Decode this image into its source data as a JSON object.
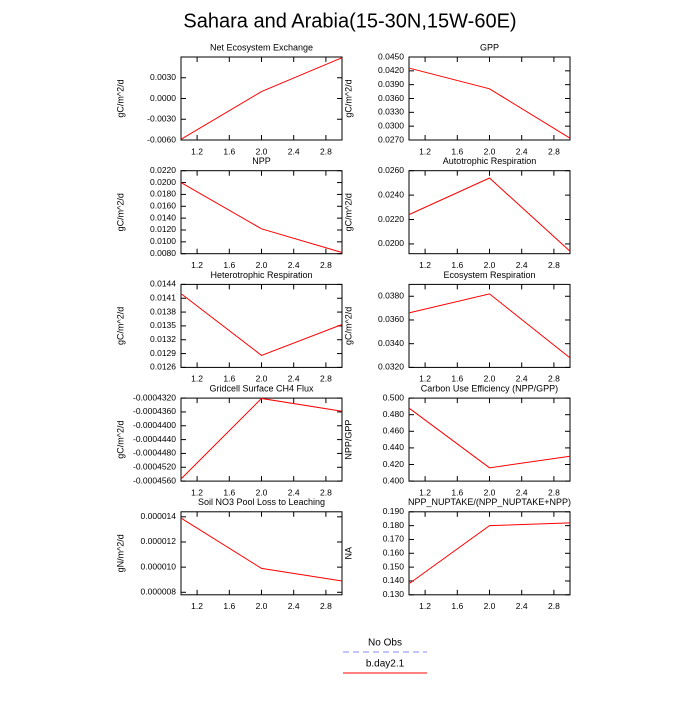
{
  "title": "Sahara and Arabia(15-30N,15W-60E)",
  "legend": [
    {
      "name": "No Obs",
      "color": "#8888ff",
      "dash": true
    },
    {
      "name": "b.day2.1",
      "color": "#ff0000",
      "dash": false
    }
  ],
  "chart_data": [
    {
      "type": "line",
      "title": "Net Ecosystem Exchange",
      "ylabel": "gC/m^2/d",
      "x": [
        1,
        2,
        3
      ],
      "values": [
        -0.0059,
        0.001,
        0.0059
      ],
      "color": "#ff0000",
      "xlim": [
        1,
        3
      ],
      "xticks": [
        1.2,
        1.6,
        {
          "value": 2,
          "label": "2.0"
        },
        2.4,
        2.8
      ],
      "ylim": [
        -0.006,
        0.006
      ],
      "yticks": [
        {
          "value": -0.006,
          "label": "-0.0060"
        },
        {
          "value": -0.003,
          "label": "-0.0030"
        },
        {
          "value": 0,
          "label": "0.0000"
        },
        {
          "value": 0.003,
          "label": "0.0030"
        }
      ]
    },
    {
      "type": "line",
      "title": "GPP",
      "ylabel": "gC/m^2/d",
      "x": [
        1,
        2,
        3
      ],
      "values": [
        0.0426,
        0.0381,
        0.0274
      ],
      "color": "#ff0000",
      "xlim": [
        1,
        3
      ],
      "xticks": [
        1.2,
        1.6,
        {
          "value": 2,
          "label": "2.0"
        },
        2.4,
        2.8
      ],
      "ylim": [
        0.027,
        0.045
      ],
      "yticks": [
        {
          "value": 0.027,
          "label": "0.0270"
        },
        {
          "value": 0.03,
          "label": "0.0300"
        },
        {
          "value": 0.033,
          "label": "0.0330"
        },
        {
          "value": 0.036,
          "label": "0.0360"
        },
        {
          "value": 0.039,
          "label": "0.0390"
        },
        {
          "value": 0.042,
          "label": "0.0420"
        },
        {
          "value": 0.045,
          "label": "0.0450"
        }
      ]
    },
    {
      "type": "line",
      "title": "NPP",
      "ylabel": "gC/m^2/d",
      "x": [
        1,
        2,
        3
      ],
      "values": [
        0.02,
        0.0122,
        0.0082
      ],
      "color": "#ff0000",
      "xlim": [
        1,
        3
      ],
      "xticks": [
        1.2,
        1.6,
        {
          "value": 2,
          "label": "2.0"
        },
        2.4,
        2.8
      ],
      "ylim": [
        0.008,
        0.022
      ],
      "yticks": [
        {
          "value": 0.008,
          "label": "0.0080"
        },
        {
          "value": 0.01,
          "label": "0.0100"
        },
        {
          "value": 0.012,
          "label": "0.0120"
        },
        {
          "value": 0.014,
          "label": "0.0140"
        },
        {
          "value": 0.016,
          "label": "0.0160"
        },
        {
          "value": 0.018,
          "label": "0.0180"
        },
        {
          "value": 0.02,
          "label": "0.0200"
        },
        {
          "value": 0.022,
          "label": "0.0220"
        }
      ]
    },
    {
      "type": "line",
      "title": "Autotrophic Respiration",
      "ylabel": "gC/m^2/d",
      "x": [
        1,
        2,
        3
      ],
      "values": [
        0.0224,
        0.0254,
        0.0194
      ],
      "color": "#ff0000",
      "xlim": [
        1,
        3
      ],
      "xticks": [
        1.2,
        1.6,
        {
          "value": 2,
          "label": "2.0"
        },
        2.4,
        2.8
      ],
      "ylim": [
        0.0192,
        0.026
      ],
      "yticks": [
        {
          "value": 0.02,
          "label": "0.0200"
        },
        {
          "value": 0.022,
          "label": "0.0220"
        },
        {
          "value": 0.024,
          "label": "0.0240"
        },
        {
          "value": 0.026,
          "label": "0.0260"
        }
      ]
    },
    {
      "type": "line",
      "title": "Heterotrophic Respiration",
      "ylabel": "gC/m^2/d",
      "x": [
        1,
        2,
        3
      ],
      "values": [
        0.0142,
        0.01286,
        0.01353
      ],
      "color": "#ff0000",
      "xlim": [
        1,
        3
      ],
      "xticks": [
        1.2,
        1.6,
        {
          "value": 2,
          "label": "2.0"
        },
        2.4,
        2.8
      ],
      "ylim": [
        0.0126,
        0.0144
      ],
      "yticks": [
        0.0126,
        0.0129,
        0.0132,
        0.0135,
        0.0138,
        0.0141,
        0.0144
      ]
    },
    {
      "type": "line",
      "title": "Ecosystem Respiration",
      "ylabel": "gC/m^2/d",
      "x": [
        1,
        2,
        3
      ],
      "values": [
        0.0366,
        0.0382,
        0.0328
      ],
      "color": "#ff0000",
      "xlim": [
        1,
        3
      ],
      "xticks": [
        1.2,
        1.6,
        {
          "value": 2,
          "label": "2.0"
        },
        2.4,
        2.8
      ],
      "ylim": [
        0.032,
        0.039
      ],
      "yticks": [
        {
          "value": 0.032,
          "label": "0.0320"
        },
        {
          "value": 0.034,
          "label": "0.0340"
        },
        {
          "value": 0.036,
          "label": "0.0360"
        },
        {
          "value": 0.038,
          "label": "0.0380"
        }
      ]
    },
    {
      "type": "line",
      "title": "Gridcell Surface CH4 Flux",
      "ylabel": "gC/m^2/d",
      "x": [
        1,
        2,
        3
      ],
      "values": [
        -0.0004554,
        -0.0004321,
        -0.0004358
      ],
      "color": "#ff0000",
      "xlim": [
        1,
        3
      ],
      "xticks": [
        1.2,
        1.6,
        {
          "value": 2,
          "label": "2.0"
        },
        2.4,
        2.8
      ],
      "ylim": [
        -0.000456,
        -0.000432
      ],
      "yticks": [
        {
          "value": -0.000456,
          "label": "-0.0004560"
        },
        {
          "value": -0.000452,
          "label": "-0.0004520"
        },
        {
          "value": -0.000448,
          "label": "-0.0004480"
        },
        {
          "value": -0.000444,
          "label": "-0.0004440"
        },
        {
          "value": -0.00044,
          "label": "-0.0004400"
        },
        {
          "value": -0.000436,
          "label": "-0.0004360"
        },
        {
          "value": -0.000432,
          "label": "-0.0004320"
        }
      ]
    },
    {
      "type": "line",
      "title": "Carbon Use Efficiency (NPP/GPP)",
      "ylabel": "NPP/GPP",
      "x": [
        1,
        2,
        3
      ],
      "values": [
        0.488,
        0.416,
        0.43
      ],
      "color": "#ff0000",
      "xlim": [
        1,
        3
      ],
      "xticks": [
        1.2,
        1.6,
        {
          "value": 2,
          "label": "2.0"
        },
        2.4,
        2.8
      ],
      "ylim": [
        0.4,
        0.5
      ],
      "yticks": [
        {
          "value": 0.4,
          "label": "0.400"
        },
        {
          "value": 0.42,
          "label": "0.420"
        },
        {
          "value": 0.44,
          "label": "0.440"
        },
        {
          "value": 0.46,
          "label": "0.460"
        },
        {
          "value": 0.48,
          "label": "0.480"
        },
        {
          "value": 0.5,
          "label": "0.500"
        }
      ]
    },
    {
      "type": "line",
      "title": "Soil NO3 Pool Loss to Leaching",
      "ylabel": "gN/m^2/d",
      "x": [
        1,
        2,
        3
      ],
      "values": [
        1.39e-05,
        9.9e-06,
        8.9e-06
      ],
      "color": "#ff0000",
      "xlim": [
        1,
        3
      ],
      "xticks": [
        1.2,
        1.6,
        {
          "value": 2,
          "label": "2.0"
        },
        2.4,
        2.8
      ],
      "ylim": [
        7.8e-06,
        1.44e-05
      ],
      "yticks": [
        {
          "value": 8e-06,
          "label": "0.000008"
        },
        {
          "value": 1e-05,
          "label": "0.000010"
        },
        {
          "value": 1.2e-05,
          "label": "0.000012"
        },
        {
          "value": 1.4e-05,
          "label": "0.000014"
        }
      ]
    },
    {
      "type": "line",
      "title": "NPP_NUPTAKE/(NPP_NUPTAKE+NPP)",
      "ylabel": "NA",
      "x": [
        1,
        2,
        3
      ],
      "values": [
        0.138,
        0.18,
        0.182
      ],
      "color": "#ff0000",
      "xlim": [
        1,
        3
      ],
      "xticks": [
        1.2,
        1.6,
        {
          "value": 2,
          "label": "2.0"
        },
        2.4,
        2.8
      ],
      "ylim": [
        0.13,
        0.19
      ],
      "yticks": [
        {
          "value": 0.13,
          "label": "0.130"
        },
        {
          "value": 0.14,
          "label": "0.140"
        },
        {
          "value": 0.15,
          "label": "0.150"
        },
        {
          "value": 0.16,
          "label": "0.160"
        },
        {
          "value": 0.17,
          "label": "0.170"
        },
        {
          "value": 0.18,
          "label": "0.180"
        },
        {
          "value": 0.19,
          "label": "0.190"
        }
      ]
    }
  ]
}
